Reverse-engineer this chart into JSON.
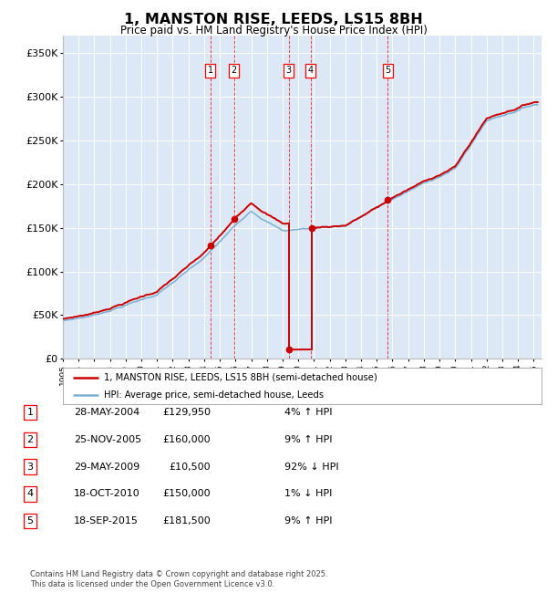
{
  "title": "1, MANSTON RISE, LEEDS, LS15 8BH",
  "subtitle": "Price paid vs. HM Land Registry's House Price Index (HPI)",
  "ylabel_ticks": [
    "£0",
    "£50K",
    "£100K",
    "£150K",
    "£200K",
    "£250K",
    "£300K",
    "£350K"
  ],
  "ytick_values": [
    0,
    50000,
    100000,
    150000,
    200000,
    250000,
    300000,
    350000
  ],
  "ylim": [
    0,
    370000
  ],
  "xlim_start": 1995.0,
  "xlim_end": 2025.5,
  "legend_line1": "1, MANSTON RISE, LEEDS, LS15 8BH (semi-detached house)",
  "legend_line2": "HPI: Average price, semi-detached house, Leeds",
  "line_color": "#cc0000",
  "hpi_color": "#7ab0d4",
  "background_color": "#dce8f5",
  "transactions": [
    {
      "id": 1,
      "date": "28-MAY-2004",
      "year": 2004.4,
      "price": 129950,
      "pct": "4%",
      "dir": "↑"
    },
    {
      "id": 2,
      "date": "25-NOV-2005",
      "year": 2005.9,
      "price": 160000,
      "pct": "9%",
      "dir": "↑"
    },
    {
      "id": 3,
      "date": "29-MAY-2009",
      "year": 2009.4,
      "price": 10500,
      "pct": "92%",
      "dir": "↓"
    },
    {
      "id": 4,
      "date": "18-OCT-2010",
      "year": 2010.8,
      "price": 150000,
      "pct": "1%",
      "dir": "↓"
    },
    {
      "id": 5,
      "date": "18-SEP-2015",
      "year": 2015.7,
      "price": 181500,
      "pct": "9%",
      "dir": "↑"
    }
  ],
  "footer": "Contains HM Land Registry data © Crown copyright and database right 2025.\nThis data is licensed under the Open Government Licence v3.0.",
  "xtick_years": [
    1995,
    1996,
    1997,
    1998,
    1999,
    2000,
    2001,
    2002,
    2003,
    2004,
    2005,
    2006,
    2007,
    2008,
    2009,
    2010,
    2011,
    2012,
    2013,
    2014,
    2015,
    2016,
    2017,
    2018,
    2019,
    2020,
    2021,
    2022,
    2023,
    2024,
    2025
  ]
}
